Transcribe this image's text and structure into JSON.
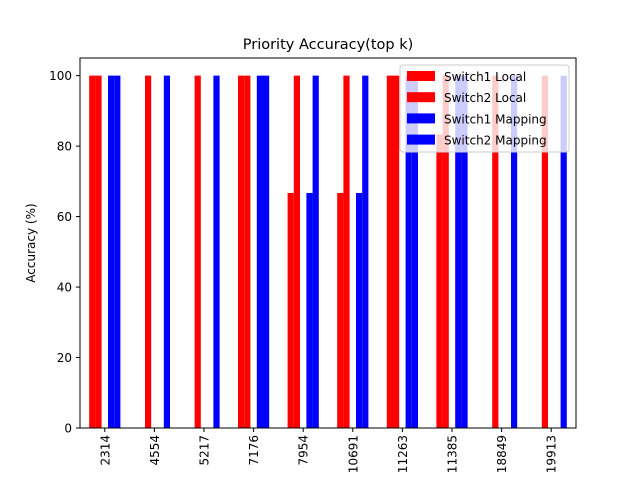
{
  "chart_data": {
    "type": "bar",
    "title": "Priority Accuracy(top k)",
    "xlabel": "",
    "ylabel": "Accuracy (%)",
    "ylim": [
      0,
      105
    ],
    "yticks": [
      0,
      20,
      40,
      60,
      80,
      100
    ],
    "categories": [
      "2314",
      "4554",
      "5217",
      "7176",
      "7954",
      "10691",
      "11263",
      "11385",
      "18849",
      "19913"
    ],
    "legend_position": "top-right",
    "grid": false,
    "series": [
      {
        "name": "Switch1 Local",
        "color": "#ff0000",
        "values": [
          100,
          0,
          0,
          100,
          66.7,
          66.7,
          100,
          83.3,
          0,
          0
        ]
      },
      {
        "name": "Switch2 Local",
        "color": "#ff0000",
        "values": [
          100,
          100,
          100,
          100,
          100,
          100,
          100,
          100,
          100,
          100
        ]
      },
      {
        "name": "Switch1 Mapping",
        "color": "#0000ff",
        "values": [
          100,
          0,
          0,
          100,
          66.7,
          66.7,
          100,
          100,
          0,
          0
        ]
      },
      {
        "name": "Switch2 Mapping",
        "color": "#0000ff",
        "values": [
          100,
          100,
          100,
          100,
          100,
          100,
          100,
          100,
          100,
          100
        ]
      }
    ]
  }
}
